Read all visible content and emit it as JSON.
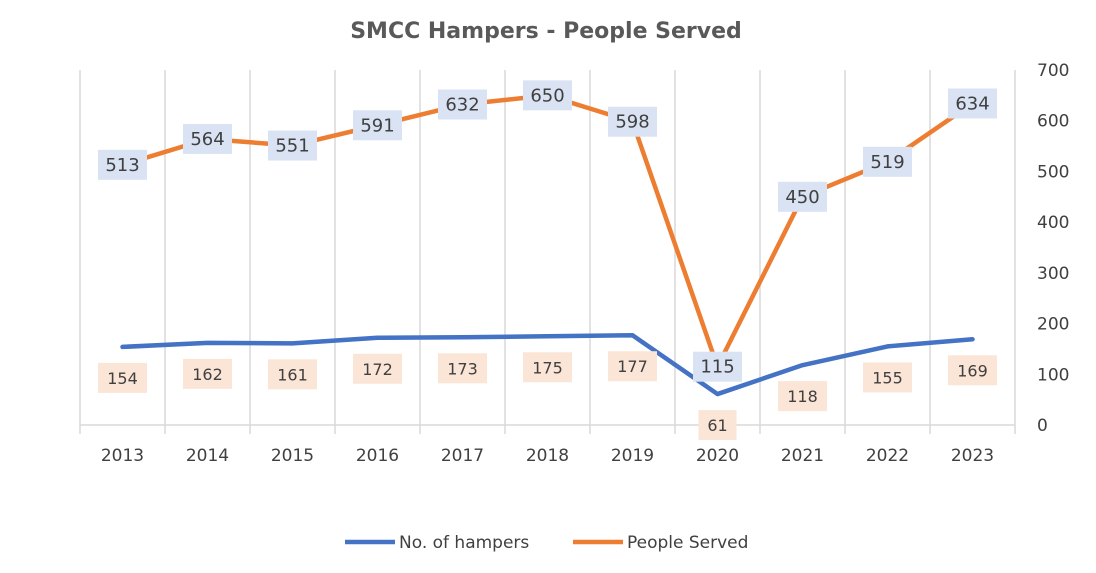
{
  "chart_data": {
    "type": "line",
    "title": "SMCC Hampers - People Served",
    "categories": [
      "2013",
      "2014",
      "2015",
      "2016",
      "2017",
      "2018",
      "2019",
      "2020",
      "2021",
      "2022",
      "2023"
    ],
    "series": [
      {
        "name": "No. of hampers",
        "color": "#4472C4",
        "label_bg": "#FBE5D6",
        "label_position": "below",
        "values": [
          154,
          162,
          161,
          172,
          173,
          175,
          177,
          61,
          118,
          155,
          169
        ]
      },
      {
        "name": "People Served",
        "color": "#ED7D31",
        "label_bg": "#DAE3F3",
        "label_position": "center",
        "values": [
          513,
          564,
          551,
          591,
          632,
          650,
          598,
          115,
          450,
          519,
          634
        ]
      }
    ],
    "y_axis": {
      "side": "right",
      "min": 0,
      "max": 700,
      "step": 100,
      "ticks": [
        "0",
        "100",
        "200",
        "300",
        "400",
        "500",
        "600",
        "700"
      ]
    },
    "grid": "vertical",
    "legend": "bottom"
  }
}
